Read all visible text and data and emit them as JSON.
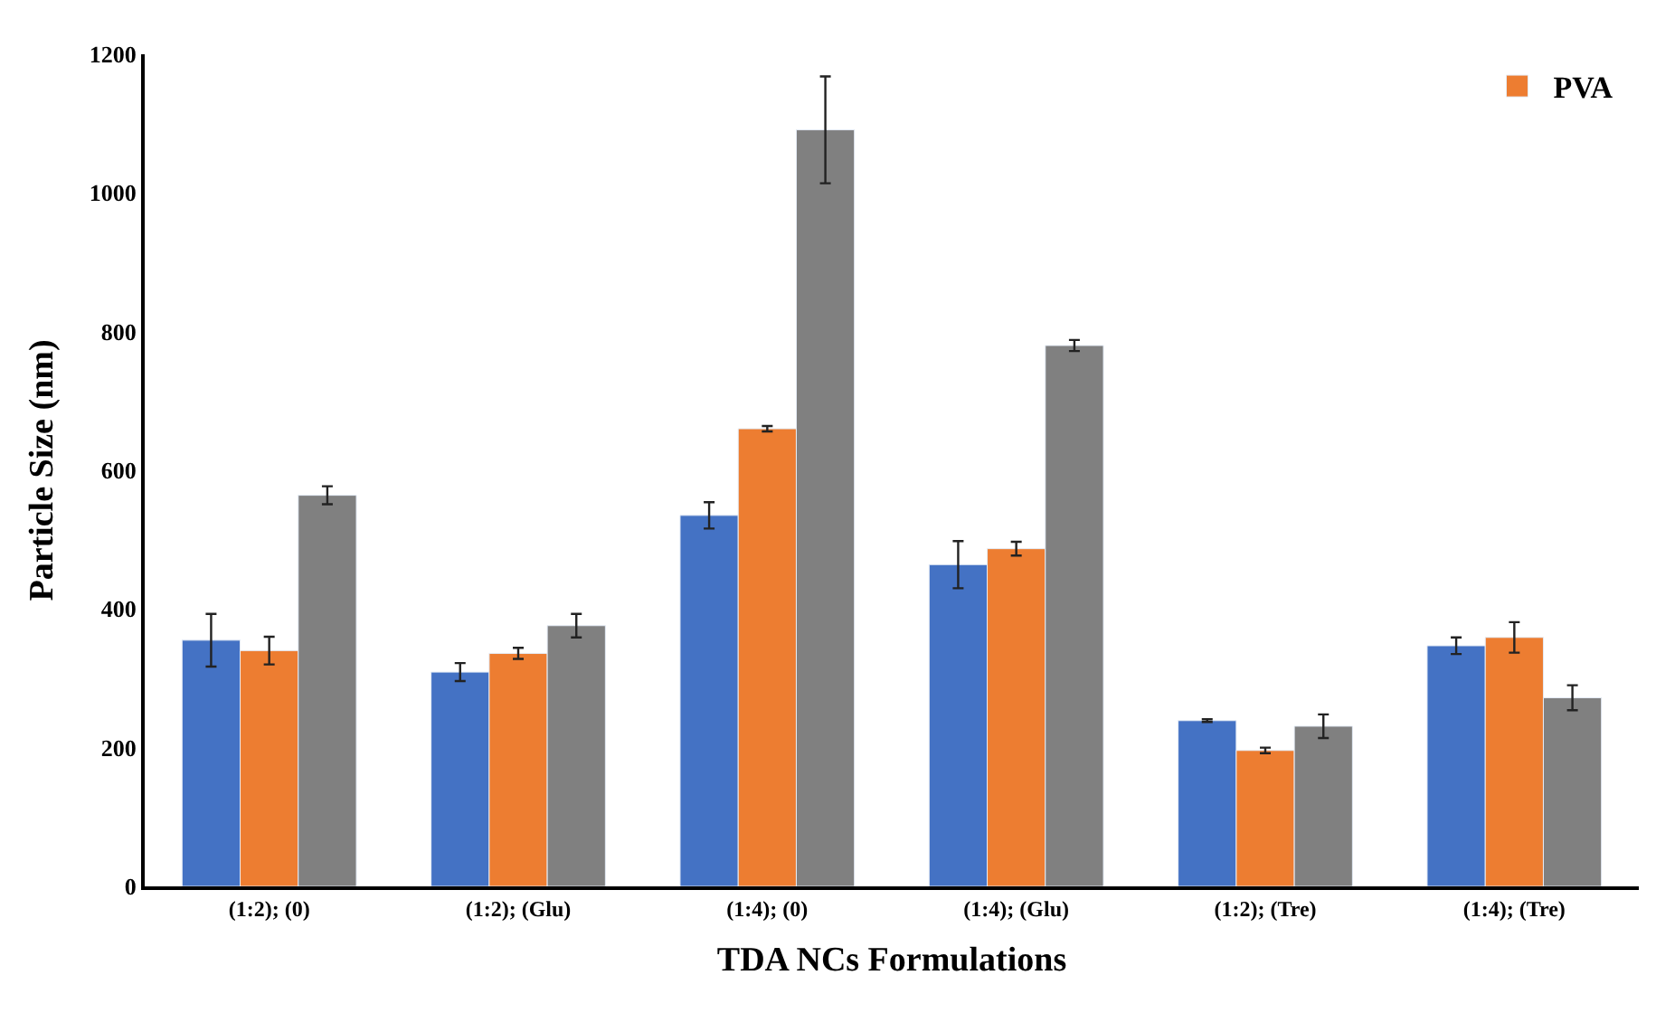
{
  "chart_data": {
    "type": "bar",
    "xlabel": "TDA NCs Formulations",
    "ylabel": "Particle Size (nm)",
    "categories": [
      "(1:2); (0)",
      "(1:2); (Glu)",
      "(1:4); (0)",
      "(1:4); (Glu)",
      "(1:2); (Tre)",
      "(1:4); (Tre)"
    ],
    "series": [
      {
        "color": "#4472c4",
        "values": [
          355,
          309,
          535,
          464,
          239,
          347
        ],
        "errors": [
          38,
          13,
          19,
          34,
          2,
          12
        ]
      },
      {
        "name": "PVA",
        "color": "#ed7d31",
        "values": [
          340,
          336,
          660,
          487,
          196,
          359
        ],
        "errors": [
          20,
          8,
          4,
          10,
          4,
          22
        ]
      },
      {
        "color": "#808080",
        "values": [
          564,
          376,
          1091,
          780,
          231,
          272
        ],
        "errors": [
          13,
          17,
          77,
          8,
          17,
          18
        ]
      }
    ],
    "ylim": [
      0,
      1200
    ],
    "yticks": [
      0,
      200,
      400,
      600,
      800,
      1000,
      1200
    ],
    "legend": "top right"
  }
}
